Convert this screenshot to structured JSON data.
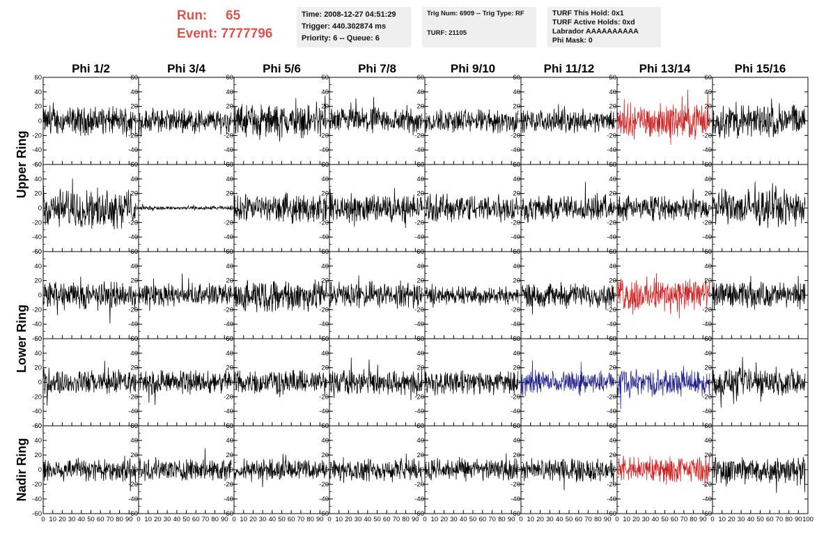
{
  "header": {
    "run_label": "Run:",
    "run_value": "65",
    "event_label": "Event:",
    "event_value": "7777796"
  },
  "info_time": {
    "line1": "Time: 2008-12-27 04:51:29",
    "line2": "Trigger: 440.302874 ms",
    "line3": "Priority: 6 -- Queue: 6"
  },
  "info_trig": {
    "line1": "Trig Num: 6909 -- Trig Type: RF",
    "line2": "TURF: 21105"
  },
  "info_turf": {
    "line1": "TURF This Hold: 0x1",
    "line2": "TURF Active Holds: 0xd",
    "line3": "Labrador AAAAAAAAAA",
    "line4": "Phi Mask: 0"
  },
  "colors": {
    "normal": "#000000",
    "triggered": "#cc2222",
    "masked": "#22228a",
    "header_red": "#d9534f",
    "info_bg": "#efefef"
  },
  "chart_data": {
    "type": "line",
    "columns": [
      "Phi 1/2",
      "Phi 3/4",
      "Phi 5/6",
      "Phi 7/8",
      "Phi 9/10",
      "Phi 11/12",
      "Phi 13/14",
      "Phi 15/16"
    ],
    "row_labels": [
      "Upper Ring",
      "Lower Ring",
      "Nadir Ring"
    ],
    "rows_per_label": [
      2,
      2,
      1
    ],
    "xlim": [
      0,
      100
    ],
    "ylim": [
      -60,
      60
    ],
    "y_ticks": [
      -60,
      -40,
      -20,
      0,
      20,
      40,
      60
    ],
    "x_ticks": [
      0,
      10,
      20,
      30,
      40,
      50,
      60,
      70,
      80,
      90,
      100
    ],
    "x_tick_labels": [
      "0",
      "10",
      "20",
      "30",
      "40",
      "50",
      "60",
      "70",
      "80",
      "90",
      "100"
    ],
    "traces": [
      [
        {
          "amp": 14,
          "color": "normal"
        },
        {
          "amp": 12,
          "color": "normal"
        },
        {
          "amp": 16,
          "color": "normal"
        },
        {
          "amp": 13,
          "color": "normal"
        },
        {
          "amp": 12,
          "color": "normal"
        },
        {
          "amp": 11,
          "color": "normal"
        },
        {
          "amp": 17,
          "color": "triggered"
        },
        {
          "amp": 17,
          "color": "normal"
        }
      ],
      [
        {
          "amp": 19,
          "color": "normal"
        },
        {
          "amp": 2,
          "color": "normal"
        },
        {
          "amp": 14,
          "color": "normal"
        },
        {
          "amp": 14,
          "color": "normal"
        },
        {
          "amp": 14,
          "color": "normal"
        },
        {
          "amp": 13,
          "color": "normal"
        },
        {
          "amp": 12,
          "color": "normal"
        },
        {
          "amp": 18,
          "color": "normal"
        }
      ],
      [
        {
          "amp": 14,
          "color": "normal"
        },
        {
          "amp": 11,
          "color": "normal"
        },
        {
          "amp": 16,
          "color": "normal"
        },
        {
          "amp": 13,
          "color": "normal"
        },
        {
          "amp": 9,
          "color": "normal"
        },
        {
          "amp": 12,
          "color": "normal"
        },
        {
          "amp": 17,
          "color": "triggered"
        },
        {
          "amp": 13,
          "color": "normal"
        }
      ],
      [
        {
          "amp": 12,
          "color": "normal"
        },
        {
          "amp": 12,
          "color": "normal"
        },
        {
          "amp": 12,
          "color": "normal"
        },
        {
          "amp": 13,
          "color": "normal"
        },
        {
          "amp": 12,
          "color": "normal"
        },
        {
          "amp": 11,
          "color": "masked"
        },
        {
          "amp": 13,
          "color": "masked"
        },
        {
          "amp": 14,
          "color": "normal"
        }
      ],
      [
        {
          "amp": 12,
          "color": "normal"
        },
        {
          "amp": 11,
          "color": "normal"
        },
        {
          "amp": 10,
          "color": "normal"
        },
        {
          "amp": 11,
          "color": "normal"
        },
        {
          "amp": 11,
          "color": "normal"
        },
        {
          "amp": 11,
          "color": "normal"
        },
        {
          "amp": 13,
          "color": "triggered"
        },
        {
          "amp": 14,
          "color": "normal"
        }
      ]
    ]
  }
}
